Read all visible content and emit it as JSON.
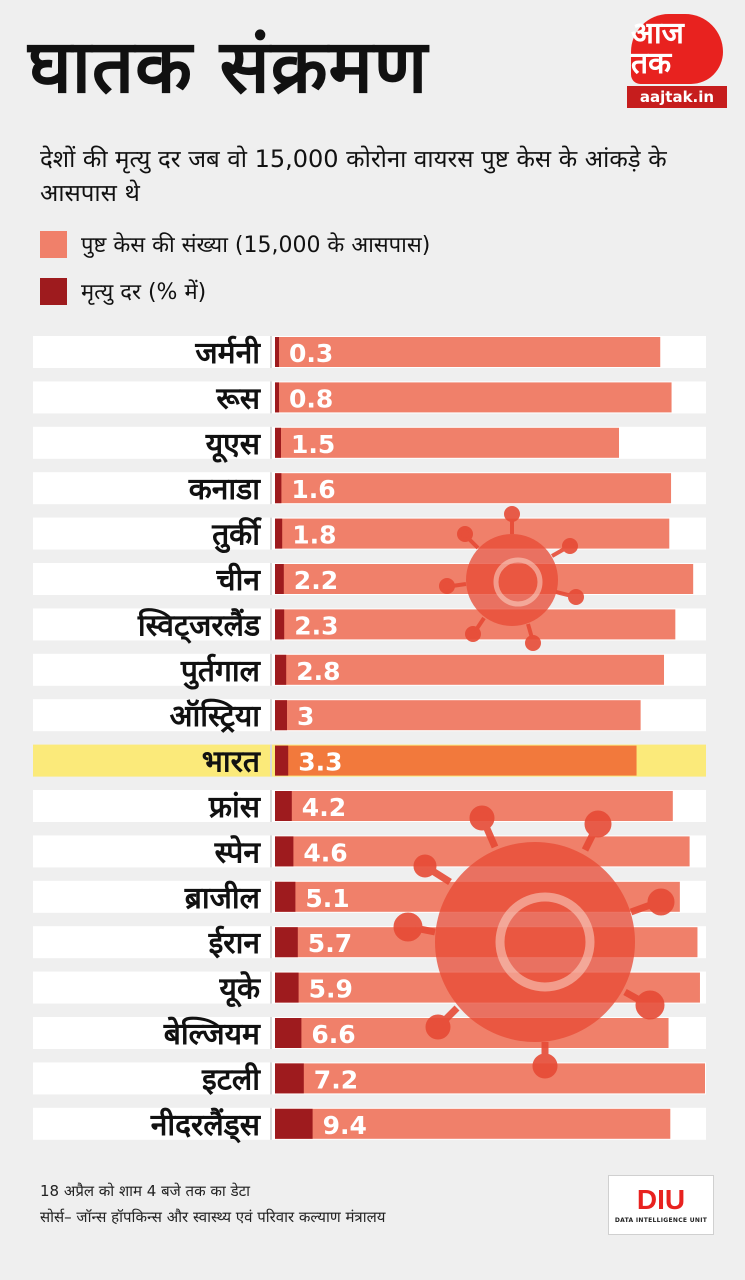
{
  "header": {
    "title": "घातक संक्रमण",
    "subtitle": "देशों की मृत्यु दर जब वो 15,000 कोरोना वायरस पुष्ट केस के आंकड़े के आसपास थे"
  },
  "brand": {
    "logo_text": "आज तक",
    "url": "aajtak.in",
    "diu_logo": "DIU",
    "diu_subtitle": "DATA INTELLIGENCE UNIT"
  },
  "legend": {
    "cases_label": "पुष्ट केस की संख्या (15,000 के आसपास)",
    "death_rate_label": "मृत्यु दर (% में)"
  },
  "colors": {
    "cases_bar": "#f0806a",
    "death_rate_bar": "#9e1b1e",
    "highlight_row": "#fbea7a",
    "highlight_bar": "#f2793c",
    "row_background": "#ffffff",
    "virus_watermark": "#e64a35"
  },
  "chart_data": {
    "type": "bar",
    "orientation": "horizontal",
    "series": [
      {
        "name": "पुष्ट केस की संख्या (15,000 के आसपास)",
        "values": [
          15320,
          15770,
          13680,
          15750,
          15680,
          16630,
          15920,
          15470,
          14540,
          14378,
          15820,
          16488,
          16100,
          16800,
          16900,
          15650,
          17100,
          15720
        ]
      },
      {
        "name": "मृत्यु दर (% में)",
        "values": [
          0.3,
          0.8,
          1.5,
          1.6,
          1.8,
          2.2,
          2.3,
          2.8,
          3,
          3.3,
          4.2,
          4.6,
          5.1,
          5.7,
          5.9,
          6.6,
          7.2,
          9.4
        ]
      }
    ],
    "rows": [
      {
        "country": "जर्मनी",
        "death_rate_label": "0.3"
      },
      {
        "country": "रूस",
        "death_rate_label": "0.8"
      },
      {
        "country": "यूएस",
        "death_rate_label": "1.5"
      },
      {
        "country": "कनाडा",
        "death_rate_label": "1.6"
      },
      {
        "country": "तुर्की",
        "death_rate_label": "1.8"
      },
      {
        "country": "चीन",
        "death_rate_label": "2.2"
      },
      {
        "country": "स्विट्जरलैंड",
        "death_rate_label": "2.3"
      },
      {
        "country": "पुर्तगाल",
        "death_rate_label": "2.8"
      },
      {
        "country": "ऑस्ट्रिया",
        "death_rate_label": "3"
      },
      {
        "country": "भारत",
        "death_rate_label": "3.3",
        "highlight": true
      },
      {
        "country": "फ्रांस",
        "death_rate_label": "4.2"
      },
      {
        "country": "स्पेन",
        "death_rate_label": "4.6"
      },
      {
        "country": "ब्राजील",
        "death_rate_label": "5.1"
      },
      {
        "country": "ईरान",
        "death_rate_label": "5.7"
      },
      {
        "country": "यूके",
        "death_rate_label": "5.9"
      },
      {
        "country": "बेल्जियम",
        "death_rate_label": "6.6"
      },
      {
        "country": "इटली",
        "death_rate_label": "7.2"
      },
      {
        "country": "नीदरलैंड्स",
        "death_rate_label": "9.4"
      }
    ]
  },
  "footer": {
    "date_note": "18 अप्रैल को शाम 4 बजे तक का डेटा",
    "source": "सोर्स– जॉन्स हॉपकिन्स और स्वास्थ्य एवं परिवार कल्याण मंत्रालय"
  }
}
